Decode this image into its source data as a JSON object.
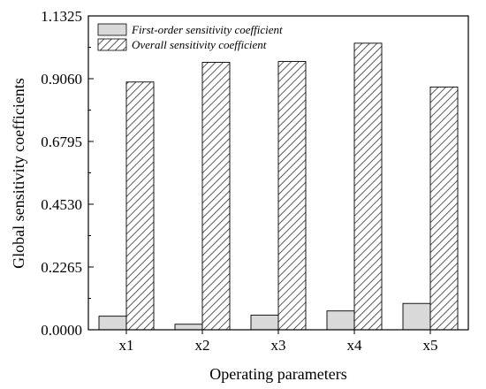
{
  "chart_data": {
    "type": "bar",
    "xlabel": "Operating parameters",
    "ylabel": "Global sensitivity coefficients",
    "categories": [
      "x1",
      "x2",
      "x3",
      "x4",
      "x5"
    ],
    "ylim": [
      0,
      1.1325
    ],
    "yticks": [
      0.0,
      0.2265,
      0.453,
      0.6795,
      0.906,
      1.1325
    ],
    "ytick_labels": [
      "0.0000",
      "0.2265",
      "0.4530",
      "0.6795",
      "0.9060",
      "1.1325"
    ],
    "series": [
      {
        "name": "First-order sensitivity coefficient",
        "values": [
          0.049,
          0.02,
          0.053,
          0.068,
          0.095
        ],
        "fill": "#d9d9d9",
        "pattern": "solid"
      },
      {
        "name": "Overall sensitivity coefficient",
        "values": [
          0.894,
          0.965,
          0.968,
          1.034,
          0.876
        ],
        "fill": "#ffffff",
        "pattern": "diagonal-hatch"
      }
    ],
    "legend_position": "top-left",
    "grid": false
  }
}
